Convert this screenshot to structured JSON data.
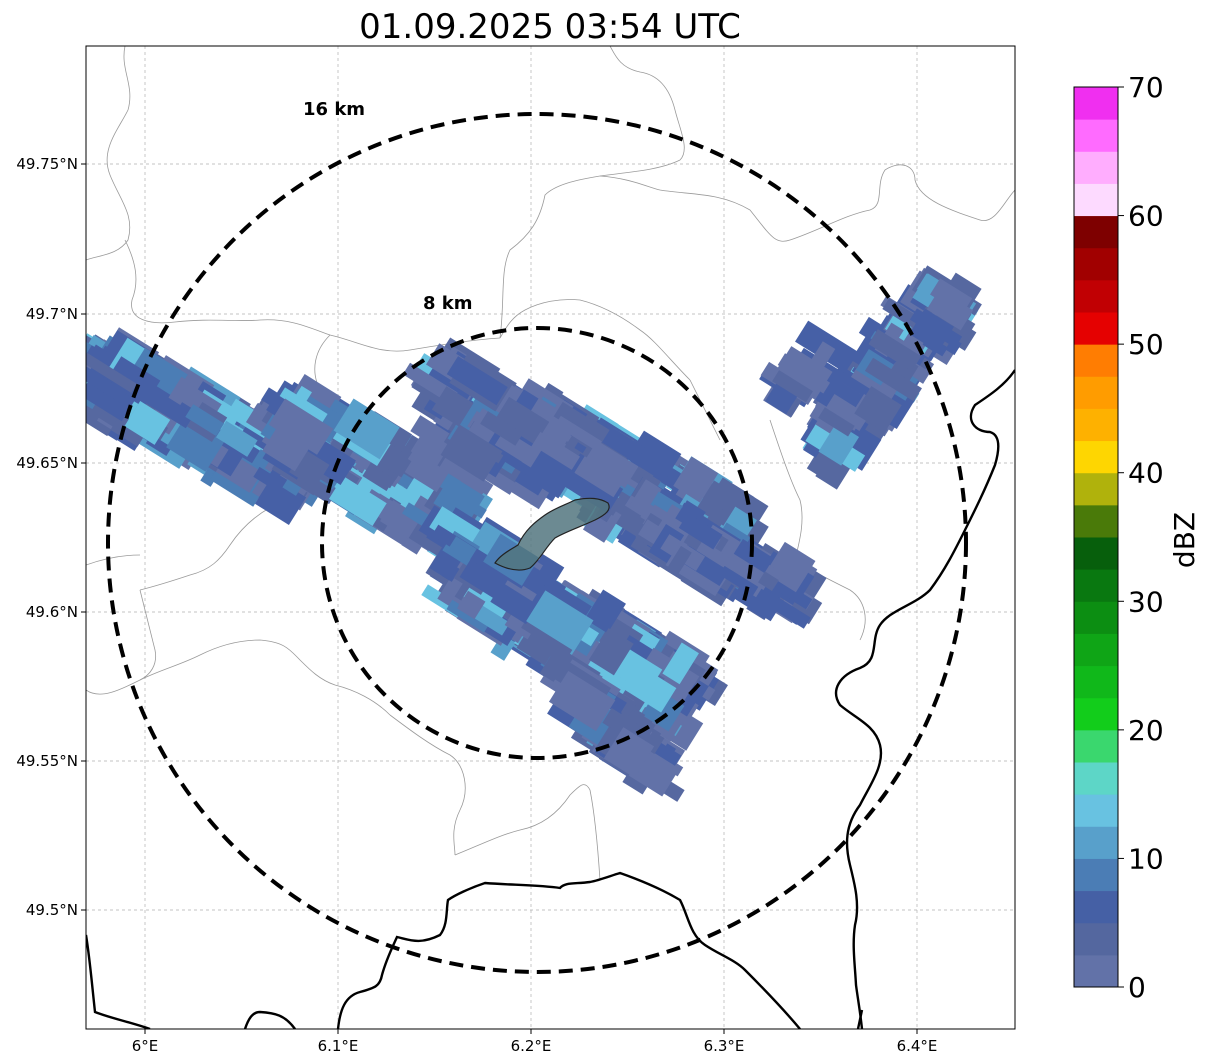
{
  "title": "01.09.2025 03:54 UTC",
  "map": {
    "x_ticks": [
      "6°E",
      "6.1°E",
      "6.2°E",
      "6.3°E",
      "6.4°E"
    ],
    "y_ticks": [
      "49.75°N",
      "49.7°N",
      "49.65°N",
      "49.6°N",
      "49.55°N",
      "49.5°N"
    ],
    "range_rings": [
      {
        "label": "16 km",
        "radius_km": 16
      },
      {
        "label": "8 km",
        "radius_km": 8
      }
    ],
    "grid": true
  },
  "colorbar": {
    "label": "dBZ",
    "ticks": [
      "0",
      "10",
      "20",
      "30",
      "40",
      "50",
      "60",
      "70"
    ],
    "colors": [
      "#6272a8",
      "#54679f",
      "#4560a5",
      "#4b7db5",
      "#58a0cb",
      "#68c2e1",
      "#5dd6c7",
      "#3ad76e",
      "#12cd1b",
      "#10b81a",
      "#0fa516",
      "#0c8e12",
      "#097810",
      "#075f0c",
      "#4a7a09",
      "#b0b20c",
      "#fed601",
      "#feb100",
      "#ff9c00",
      "#ff7d02",
      "#e50101",
      "#c10003",
      "#a10000",
      "#7e0000",
      "#fddaff",
      "#ffadfe",
      "#ff6bff",
      "#f02ff0"
    ]
  },
  "echo_colors": [
    "#6272a8",
    "#5668a0",
    "#4660a6",
    "#4b7db5",
    "#58a0cb",
    "#68c2e1"
  ]
}
